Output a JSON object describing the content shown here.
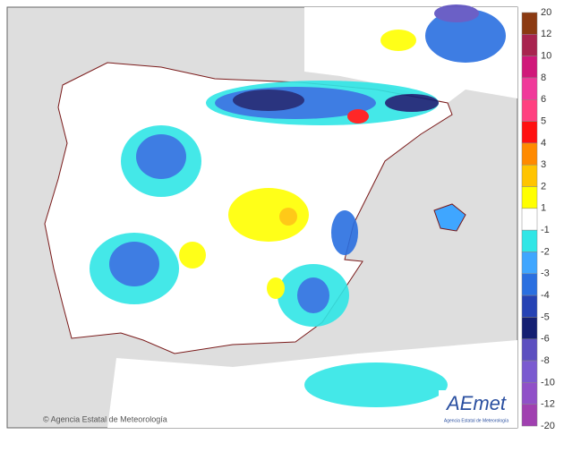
{
  "legend": {
    "labels": [
      "20",
      "12",
      "10",
      "8",
      "6",
      "5",
      "4",
      "3",
      "2",
      "1",
      "-1",
      "-2",
      "-3",
      "-4",
      "-5",
      "-6",
      "-8",
      "-10",
      "-12",
      "-20"
    ],
    "colors": [
      "#8b3a12",
      "#a8244f",
      "#d0187a",
      "#f0399a",
      "#ff4080",
      "#ff1010",
      "#ff8a00",
      "#ffc400",
      "#ffff00",
      "#ffffff",
      "#30e6e6",
      "#3fa6ff",
      "#2a6fe0",
      "#2542b4",
      "#141f72",
      "#5c4fc0",
      "#7a5ad0",
      "#9050c8",
      "#a040b0"
    ]
  },
  "credit": "© Agencia Estatal de Meteorología",
  "logo": {
    "mark": "AEmet",
    "caption": "Agencia Estatal de Meteorología"
  }
}
